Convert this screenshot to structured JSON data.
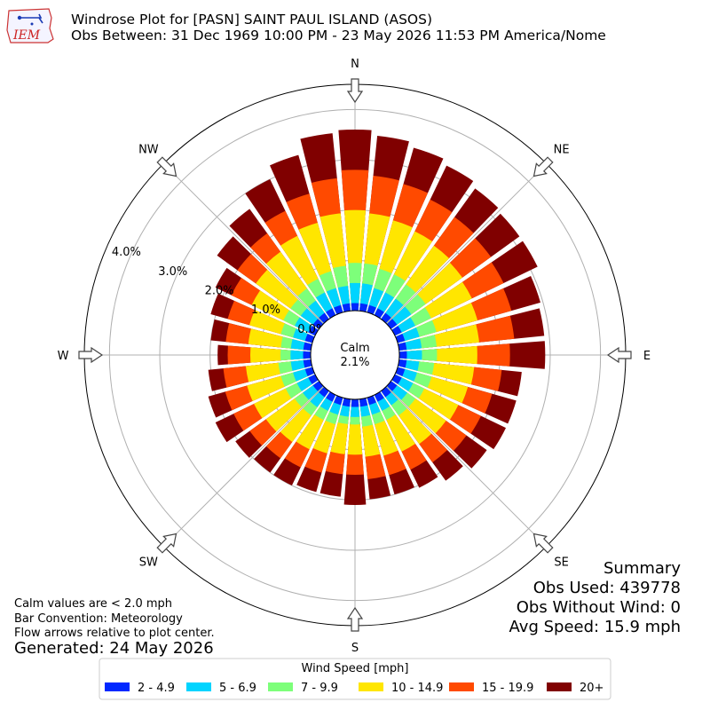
{
  "header": {
    "title": "Windrose Plot for [PASN] SAINT PAUL ISLAND (ASOS)",
    "subtitle": "Obs Between: 31 Dec 1969 10:00 PM - 23 May 2026 11:53 PM America/Nome",
    "logo_text": "IEM"
  },
  "notes": {
    "calm_note": "Calm values are < 2.0 mph",
    "bar_convention": "Bar Convention: Meteorology",
    "flow_arrows": "Flow arrows relative to plot center.",
    "generated": "Generated: 24 May 2026"
  },
  "summary": {
    "title": "Summary",
    "obs_used": "Obs Used: 439778",
    "obs_without_wind": "Obs Without Wind: 0",
    "avg_speed": "Avg Speed: 15.9 mph"
  },
  "legend": {
    "title": "Wind Speed [mph]",
    "items": [
      {
        "label": "2 - 4.9",
        "color": "#0028ff"
      },
      {
        "label": "5 - 6.9",
        "color": "#00d4ff"
      },
      {
        "label": "7 - 9.9",
        "color": "#7dff7a"
      },
      {
        "label": "10 - 14.9",
        "color": "#ffe600"
      },
      {
        "label": "15 - 19.9",
        "color": "#ff4a00"
      },
      {
        "label": "20+",
        "color": "#800000"
      }
    ]
  },
  "chart_data": {
    "type": "windrose",
    "title": "Windrose Plot for [PASN] SAINT PAUL ISLAND (ASOS)",
    "direction_labels": [
      "N",
      "NE",
      "E",
      "SE",
      "S",
      "SW",
      "W",
      "NW"
    ],
    "radial_ticks": [
      "0.0%",
      "1.0%",
      "2.0%",
      "3.0%",
      "4.0%"
    ],
    "radial_tick_values": [
      0,
      1,
      2,
      3,
      4
    ],
    "rmax": 4.5,
    "calm_label": "Calm",
    "calm_value": "2.1%",
    "speed_bins": [
      "2 - 4.9",
      "5 - 6.9",
      "7 - 9.9",
      "10 - 14.9",
      "15 - 19.9",
      "20+"
    ],
    "directions_deg": [
      0,
      10,
      20,
      30,
      40,
      50,
      60,
      70,
      80,
      90,
      100,
      110,
      120,
      130,
      140,
      150,
      160,
      170,
      180,
      190,
      200,
      210,
      220,
      230,
      240,
      250,
      260,
      270,
      280,
      290,
      300,
      310,
      320,
      330,
      340,
      350
    ],
    "cumulative_percent": [
      [
        0.15,
        0.55,
        0.95,
        2.0,
        2.8,
        3.6
      ],
      [
        0.15,
        0.55,
        0.95,
        1.95,
        2.7,
        3.5
      ],
      [
        0.15,
        0.5,
        0.9,
        1.9,
        2.65,
        3.4
      ],
      [
        0.15,
        0.5,
        0.9,
        1.85,
        2.55,
        3.3
      ],
      [
        0.15,
        0.5,
        0.85,
        1.8,
        2.5,
        3.2
      ],
      [
        0.15,
        0.5,
        0.85,
        1.75,
        2.45,
        3.15
      ],
      [
        0.15,
        0.45,
        0.8,
        1.7,
        2.4,
        3.15
      ],
      [
        0.15,
        0.45,
        0.8,
        1.65,
        2.35,
        2.95
      ],
      [
        0.15,
        0.45,
        0.75,
        1.6,
        2.3,
        2.9
      ],
      [
        0.15,
        0.45,
        0.75,
        1.55,
        2.2,
        2.9
      ],
      [
        0.15,
        0.4,
        0.7,
        1.5,
        2.05,
        2.45
      ],
      [
        0.15,
        0.4,
        0.7,
        1.45,
        1.95,
        2.45
      ],
      [
        0.15,
        0.4,
        0.65,
        1.4,
        1.9,
        2.45
      ],
      [
        0.15,
        0.4,
        0.6,
        1.35,
        1.85,
        2.35
      ],
      [
        0.15,
        0.35,
        0.6,
        1.3,
        1.75,
        2.2
      ],
      [
        0.15,
        0.35,
        0.55,
        1.25,
        1.65,
        2.05
      ],
      [
        0.15,
        0.35,
        0.55,
        1.2,
        1.6,
        2.0
      ],
      [
        0.15,
        0.35,
        0.55,
        1.15,
        1.6,
        2.0
      ],
      [
        0.15,
        0.35,
        0.5,
        1.1,
        1.5,
        2.1
      ],
      [
        0.15,
        0.35,
        0.5,
        1.1,
        1.5,
        1.95
      ],
      [
        0.15,
        0.35,
        0.55,
        1.15,
        1.55,
        1.95
      ],
      [
        0.15,
        0.35,
        0.55,
        1.2,
        1.6,
        2.0
      ],
      [
        0.15,
        0.4,
        0.6,
        1.25,
        1.65,
        2.0
      ],
      [
        0.15,
        0.4,
        0.6,
        1.3,
        1.7,
        2.05
      ],
      [
        0.15,
        0.4,
        0.65,
        1.35,
        1.8,
        2.2
      ],
      [
        0.15,
        0.4,
        0.65,
        1.35,
        1.8,
        2.15
      ],
      [
        0.15,
        0.4,
        0.65,
        1.3,
        1.75,
        2.05
      ],
      [
        0.15,
        0.4,
        0.6,
        1.2,
        1.65,
        1.85
      ],
      [
        0.15,
        0.4,
        0.6,
        1.25,
        1.7,
        2.0
      ],
      [
        0.15,
        0.4,
        0.65,
        1.3,
        1.75,
        2.1
      ],
      [
        0.15,
        0.45,
        0.7,
        1.4,
        1.85,
        2.2
      ],
      [
        0.15,
        0.45,
        0.7,
        1.55,
        2.0,
        2.5
      ],
      [
        0.15,
        0.45,
        0.75,
        1.65,
        2.1,
        2.7
      ],
      [
        0.15,
        0.5,
        0.8,
        1.75,
        2.3,
        3.0
      ],
      [
        0.15,
        0.5,
        0.85,
        1.85,
        2.45,
        3.25
      ],
      [
        0.15,
        0.5,
        0.9,
        1.95,
        2.65,
        3.55
      ]
    ]
  }
}
